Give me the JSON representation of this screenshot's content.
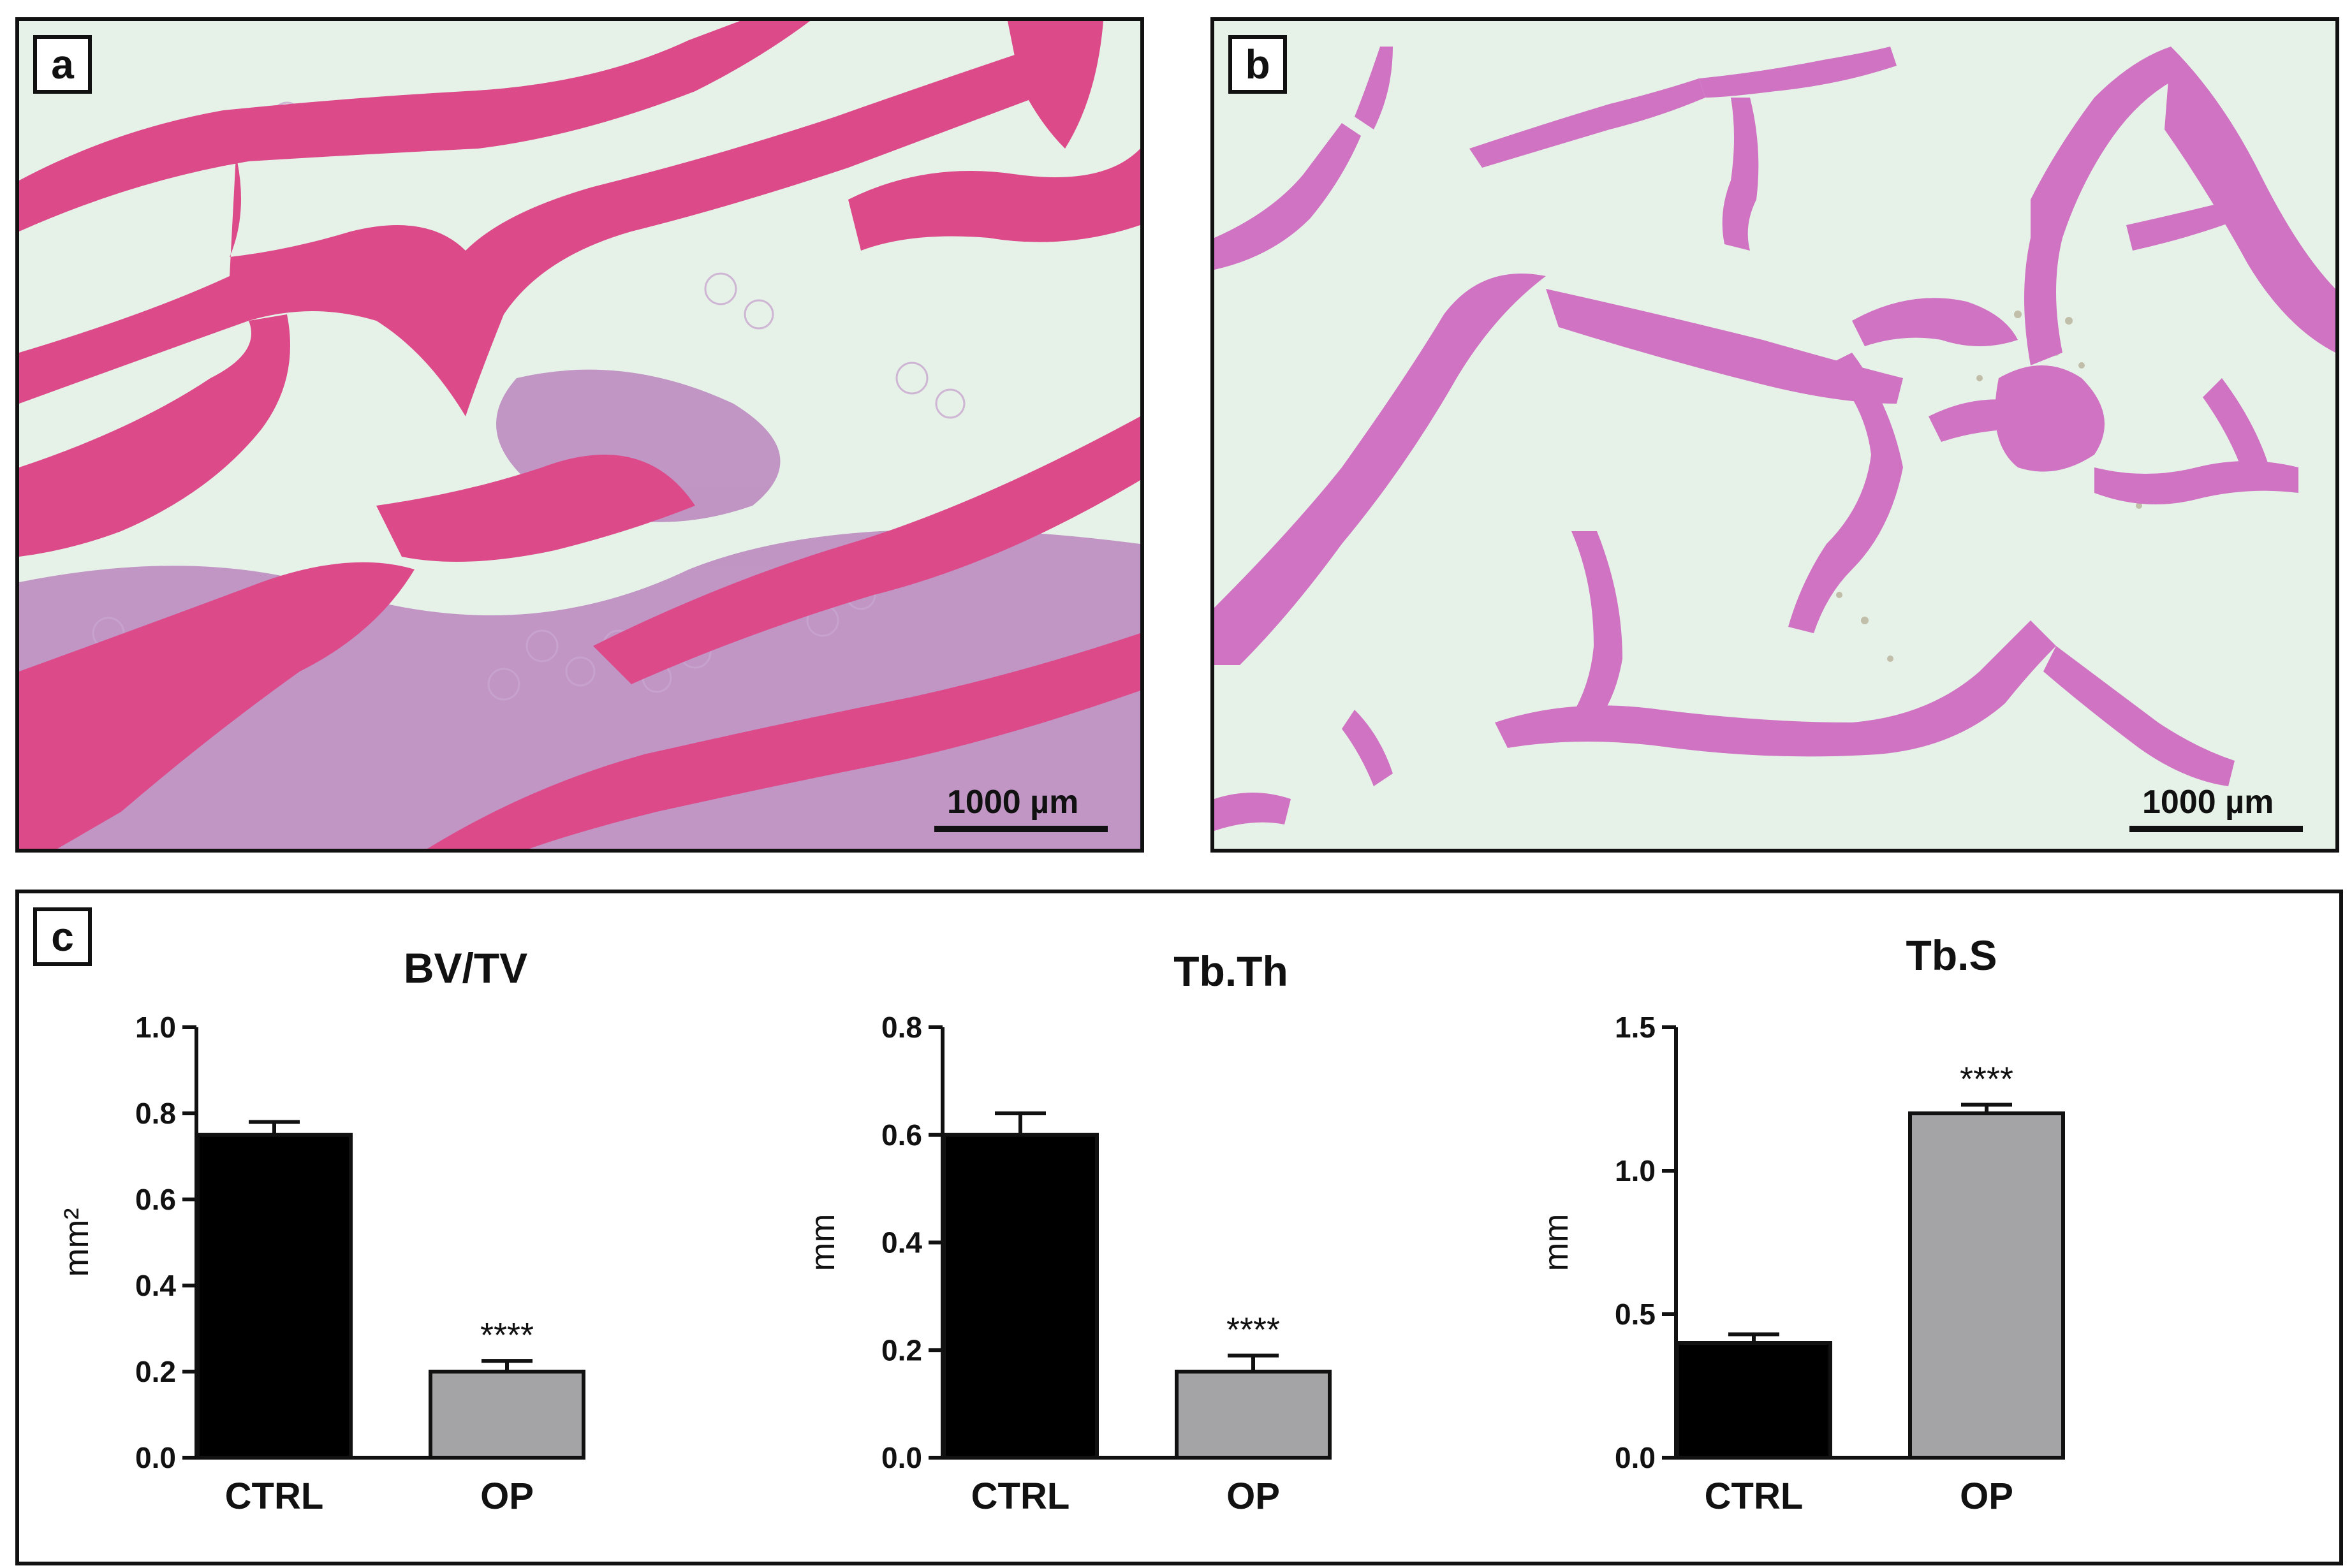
{
  "panels": {
    "a": {
      "label": "a",
      "scale": "1000 µm"
    },
    "b": {
      "label": "b",
      "scale": "1000 µm"
    },
    "c": {
      "label": "c"
    }
  },
  "colors": {
    "bone": "#dc4a8a",
    "bone_light": "#cf73c2",
    "background": "#e4f1e6",
    "marrow": "#a24aa8",
    "ctrl_bar": "#000000",
    "op_bar": "#a4a4a6"
  },
  "chart_data": [
    {
      "type": "bar",
      "title": "BV/TV",
      "ylabel": "mm²",
      "categories": [
        "CTRL",
        "OP"
      ],
      "values": [
        0.75,
        0.2
      ],
      "errors": [
        0.03,
        0.025
      ],
      "significance": [
        "",
        "****"
      ],
      "ylim": [
        0,
        1.0
      ],
      "yticks": [
        "0.0",
        "0.2",
        "0.4",
        "0.6",
        "0.8",
        "1.0"
      ]
    },
    {
      "type": "bar",
      "title": "Tb.Th",
      "ylabel": "mm",
      "categories": [
        "CTRL",
        "OP"
      ],
      "values": [
        0.6,
        0.16
      ],
      "errors": [
        0.04,
        0.03
      ],
      "significance": [
        "",
        "****"
      ],
      "ylim": [
        0,
        0.8
      ],
      "yticks": [
        "0.0",
        "0.2",
        "0.4",
        "0.6",
        "0.8"
      ]
    },
    {
      "type": "bar",
      "title": "Tb.S",
      "ylabel": "mm",
      "categories": [
        "CTRL",
        "OP"
      ],
      "values": [
        0.4,
        1.2
      ],
      "errors": [
        0.03,
        0.03
      ],
      "significance": [
        "",
        "****"
      ],
      "ylim": [
        0,
        1.5
      ],
      "yticks": [
        "0.0",
        "0.5",
        "1.0",
        "1.5"
      ]
    }
  ]
}
